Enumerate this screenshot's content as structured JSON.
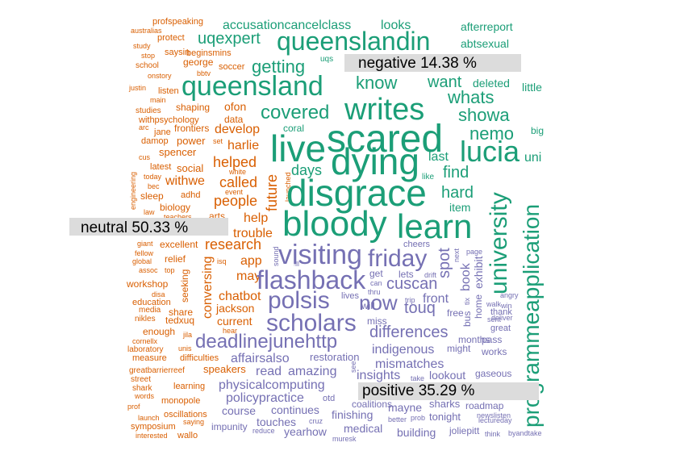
{
  "colors": {
    "negative": "#1b9e77",
    "neutral": "#d95f02",
    "positive": "#7570b3",
    "label_bg": "#dcdcdc"
  },
  "categories": {
    "negative": "negative 14.38 %",
    "neutral": "neutral 50.33 %",
    "positive": "positive 35.29 %"
  },
  "words": {
    "negative": [
      "scared",
      "dying",
      "writes",
      "live",
      "disgrace",
      "bloody",
      "learn",
      "lucia",
      "queensland",
      "queenslandin",
      "university",
      "programmeapplication",
      "getting",
      "covered",
      "know",
      "want",
      "whats",
      "showa",
      "nemo",
      "hard",
      "find",
      "days",
      "last",
      "item",
      "uni",
      "accusationcancelclass",
      "looks",
      "afterreport",
      "abtsexual",
      "uqexpert",
      "deleted",
      "little",
      "big",
      "coral",
      "uqs",
      "like"
    ],
    "neutral": [
      "australias",
      "profspeaking",
      "study",
      "protect",
      "stop",
      "saysin",
      "beginsmins",
      "school",
      "george",
      "soccer",
      "onstory",
      "bbtv",
      "justin",
      "listen",
      "main",
      "shaping",
      "ofon",
      "studies",
      "withpsychology",
      "data",
      "arc",
      "jane",
      "frontiers",
      "develop",
      "damop",
      "power",
      "set",
      "harlie",
      "cus",
      "spencer",
      "engineering",
      "latest",
      "social",
      "helped",
      "today",
      "withwe",
      "white",
      "future",
      "bec",
      "called",
      "adhd",
      "event",
      "launched",
      "sleep",
      "people",
      "biology",
      "teachers",
      "arts",
      "law",
      "help",
      "trouble",
      "giant",
      "excellent",
      "research",
      "fellow",
      "relief",
      "global",
      "assoc",
      "top",
      "app",
      "isq",
      "may",
      "workshop",
      "seeking",
      "conversing",
      "chatbot",
      "education",
      "disa",
      "media",
      "share",
      "jackson",
      "nikles",
      "tedxuq",
      "current",
      "enough",
      "hear",
      "cornellx",
      "jila",
      "laboratory",
      "unis",
      "measure",
      "difficulties",
      "greatbarrierreef",
      "speakers",
      "street",
      "shark",
      "learning",
      "words",
      "monopole",
      "prof",
      "launch",
      "oscillations",
      "symposium",
      "saying",
      "interested",
      "wallo"
    ],
    "positive": [
      "visiting",
      "friday",
      "flashback",
      "polsis",
      "now",
      "scholars",
      "cuscan",
      "touq",
      "deadlinejunehttp",
      "differences",
      "indigenous",
      "mismatches",
      "affairsalso",
      "read",
      "amazing",
      "restoration",
      "insights",
      "lookout",
      "physicalcomputing",
      "policypractice",
      "course",
      "continues",
      "finishing",
      "touches",
      "yearhow",
      "medical",
      "mayne",
      "sharks",
      "building",
      "tonight",
      "roadmap",
      "joliepitt",
      "spot",
      "book",
      "exhibit",
      "cheers",
      "get",
      "lets",
      "front",
      "will",
      "miss",
      "lives",
      "drift",
      "can",
      "thru",
      "trip",
      "free",
      "bus",
      "months",
      "pass",
      "works",
      "might",
      "gaseous",
      "thank",
      "great",
      "home",
      "next",
      "page",
      "deliver",
      "sent",
      "tix",
      "walk",
      "angry",
      "win",
      "otd",
      "coalitions",
      "impunity",
      "reduce",
      "cruz",
      "muresk",
      "better",
      "prob",
      "take",
      "newslisten",
      "lectureday",
      "think",
      "byandtake",
      "see",
      "sound",
      "ill"
    ]
  }
}
